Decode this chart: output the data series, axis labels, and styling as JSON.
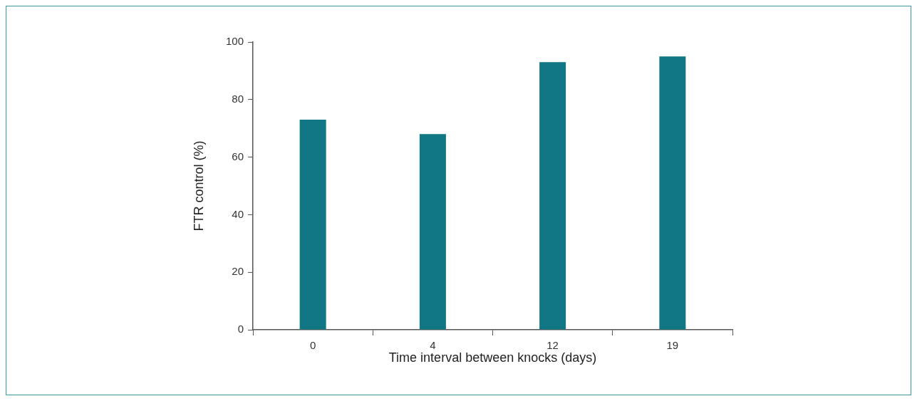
{
  "chart_data": {
    "type": "bar",
    "xlabel": "Time interval between knocks (days)",
    "ylabel": "FTR control (%)",
    "categories": [
      "0",
      "4",
      "12",
      "19"
    ],
    "values": [
      73,
      68,
      93,
      95
    ],
    "color": "#117785",
    "ylim": [
      0,
      100
    ],
    "yticks": [
      0,
      20,
      40,
      60,
      80,
      100
    ],
    "grid": false,
    "legend": false
  }
}
